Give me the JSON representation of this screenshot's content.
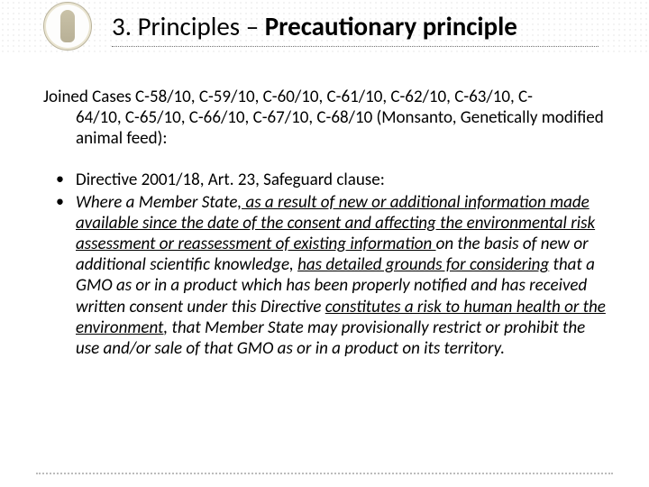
{
  "title_prefix": "3. Principles – ",
  "title_bold": "Precautionary principle",
  "para1_line1": "Joined Cases C-58/10, C-59/10, C-60/10, C-61/10, C-62/10, C-63/10, C-",
  "para1_cont": "64/10, C-65/10, C-66/10, C-67/10, C-68/10 (Monsanto, Genetically modified animal feed):",
  "bullet1": "Directive 2001/18, Art. 23, Safeguard clause:",
  "b2_1": "Where a Member State",
  "b2_2": ", as a result of new or additional information made available since the date of the consent and affecting the environmental risk assessment or reassessment of existing information ",
  "b2_3": "on the basis of new or additional scientific knowledge, ",
  "b2_4": "has detailed grounds for considering",
  "b2_5": " that a GMO as or in a product which has been properly notified and has received written consent under this Directive ",
  "b2_6": "constitutes a risk to human health or the environment",
  "b2_7": ", that Member State may provisionally restrict or prohibit the use and/or sale of that GMO as or in a product on its territory."
}
